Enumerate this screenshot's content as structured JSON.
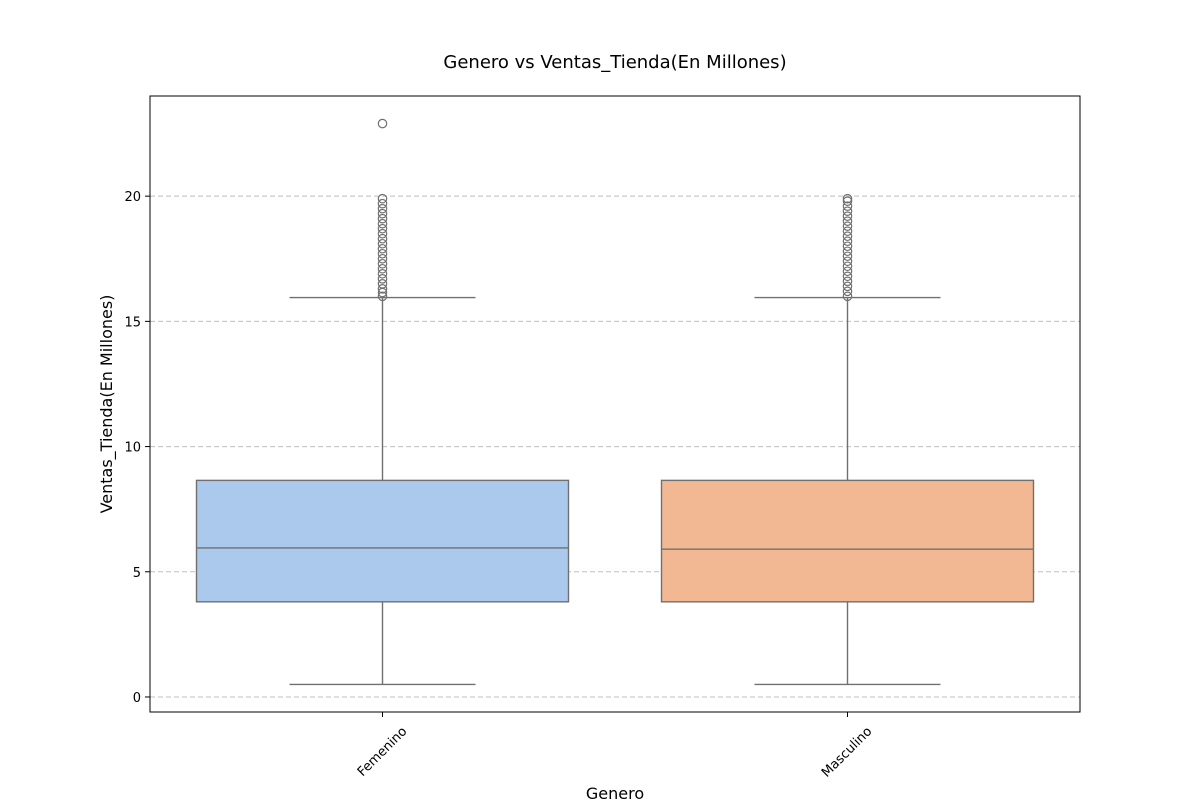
{
  "chart_data": {
    "type": "box",
    "title": "Genero vs Ventas_Tienda(En Millones)",
    "xlabel": "Genero",
    "ylabel": "Ventas_Tienda(En Millones)",
    "categories": [
      "Femenino",
      "Masculino"
    ],
    "ylim": [
      -0.6,
      24.0
    ],
    "yticks": [
      0,
      5,
      10,
      15,
      20
    ],
    "grid": "y-dashed",
    "colors": {
      "Femenino": "#abc9ed",
      "Masculino": "#f1b893",
      "line": "#707070"
    },
    "boxes": [
      {
        "name": "Femenino",
        "whisker_low": 0.5,
        "q1": 3.8,
        "median": 5.95,
        "q3": 8.65,
        "whisker_high": 15.95,
        "fliers": [
          16.0,
          16.15,
          16.3,
          16.5,
          16.7,
          16.9,
          17.1,
          17.3,
          17.5,
          17.7,
          17.9,
          18.1,
          18.3,
          18.5,
          18.7,
          18.9,
          19.1,
          19.3,
          19.5,
          19.7,
          19.9,
          22.9
        ]
      },
      {
        "name": "Masculino",
        "whisker_low": 0.5,
        "q1": 3.8,
        "median": 5.9,
        "q3": 8.65,
        "whisker_high": 15.95,
        "fliers": [
          16.0,
          16.2,
          16.4,
          16.6,
          16.8,
          17.0,
          17.2,
          17.4,
          17.6,
          17.8,
          18.0,
          18.2,
          18.4,
          18.6,
          18.8,
          19.0,
          19.2,
          19.4,
          19.6,
          19.8,
          19.9
        ]
      }
    ]
  }
}
